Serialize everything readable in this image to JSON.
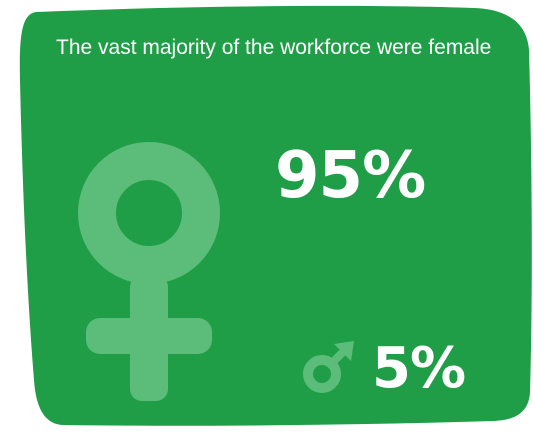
{
  "headline": "The vast majority of the workforce were female",
  "female": {
    "percent_label": "95%",
    "icon": "female-symbol-icon"
  },
  "male": {
    "percent_label": "5%",
    "icon": "male-symbol-icon"
  },
  "colors": {
    "card_green": "#1f9e47",
    "symbol_green": "#5cbd7b",
    "text": "#ffffff"
  }
}
